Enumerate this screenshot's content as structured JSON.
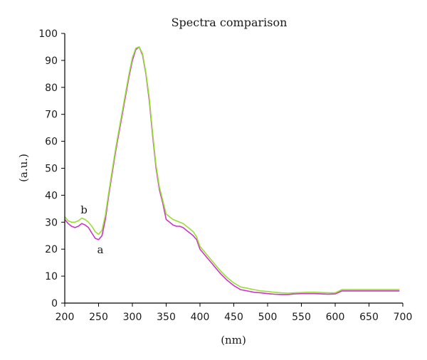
{
  "chart_data": {
    "type": "line",
    "title": "Spectra comparison",
    "xlabel": "(nm)",
    "ylabel": "(a.u.)",
    "xlim": [
      200,
      700
    ],
    "ylim": [
      0,
      100
    ],
    "x_ticks": [
      200,
      250,
      300,
      350,
      400,
      450,
      500,
      550,
      600,
      650,
      700
    ],
    "y_ticks": [
      0,
      10,
      20,
      30,
      40,
      50,
      60,
      70,
      80,
      90,
      100
    ],
    "grid": false,
    "legend": "none",
    "series": [
      {
        "name": "a",
        "color": "#cc33cc",
        "x": [
          200,
          205,
          210,
          215,
          220,
          225,
          230,
          235,
          240,
          245,
          250,
          255,
          260,
          265,
          270,
          275,
          280,
          285,
          290,
          295,
          300,
          305,
          310,
          315,
          320,
          325,
          330,
          335,
          340,
          345,
          350,
          355,
          360,
          365,
          370,
          375,
          380,
          385,
          390,
          395,
          400,
          410,
          420,
          430,
          440,
          450,
          460,
          470,
          480,
          490,
          500,
          510,
          520,
          530,
          540,
          550,
          560,
          570,
          580,
          590,
          600,
          610,
          620,
          630,
          640,
          650,
          660,
          670,
          680,
          690,
          695
        ],
        "values": [
          31,
          29.5,
          28.5,
          28,
          28.5,
          29.5,
          29,
          28,
          26,
          24,
          23.5,
          25,
          31,
          40,
          48,
          56,
          63,
          70,
          77,
          84,
          90,
          94,
          95,
          92,
          85,
          75,
          62,
          50,
          42,
          37,
          31,
          30,
          29,
          28.5,
          28.5,
          28,
          27,
          26,
          25,
          23.5,
          20,
          17,
          14,
          11,
          8.5,
          6.5,
          5,
          4.5,
          4,
          3.8,
          3.5,
          3.3,
          3.2,
          3.2,
          3.4,
          3.5,
          3.5,
          3.5,
          3.4,
          3.3,
          3.4,
          4.5,
          4.5,
          4.5,
          4.5,
          4.5,
          4.5,
          4.5,
          4.5,
          4.5,
          4.5
        ]
      },
      {
        "name": "b",
        "color": "#99dd33",
        "x": [
          200,
          205,
          210,
          215,
          220,
          225,
          230,
          235,
          240,
          245,
          250,
          255,
          260,
          265,
          270,
          275,
          280,
          285,
          290,
          295,
          300,
          305,
          310,
          315,
          320,
          325,
          330,
          335,
          340,
          345,
          350,
          355,
          360,
          365,
          370,
          375,
          380,
          385,
          390,
          395,
          400,
          410,
          420,
          430,
          440,
          450,
          460,
          470,
          480,
          490,
          500,
          510,
          520,
          530,
          540,
          550,
          560,
          570,
          580,
          590,
          600,
          610,
          620,
          630,
          640,
          650,
          660,
          670,
          680,
          690,
          695
        ],
        "values": [
          32,
          30.5,
          30,
          30,
          30.5,
          31.5,
          31,
          30,
          28.5,
          26.5,
          25.5,
          27,
          32.5,
          41,
          49,
          57,
          64,
          71,
          78,
          85,
          91,
          94.5,
          95,
          92.5,
          85.5,
          76,
          63,
          51,
          43,
          38,
          33,
          32,
          31,
          30.5,
          30,
          29.5,
          28.5,
          27.5,
          26.5,
          24.5,
          21,
          18,
          15,
          12,
          9.5,
          7.5,
          6,
          5.5,
          5,
          4.5,
          4.3,
          4,
          3.8,
          3.7,
          3.8,
          3.9,
          4,
          4,
          3.9,
          3.8,
          3.8,
          5,
          5,
          5,
          5,
          5,
          5,
          5,
          5,
          5,
          5
        ]
      }
    ]
  }
}
